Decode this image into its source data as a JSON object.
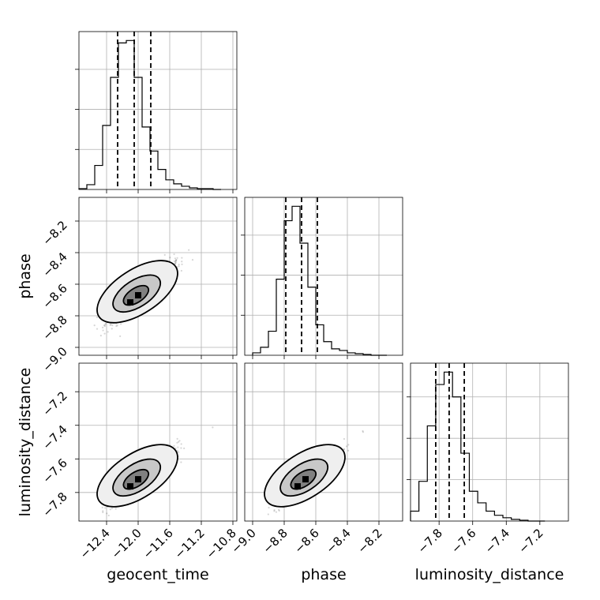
{
  "chart_data": {
    "type": "corner",
    "parameters": [
      "geocent_time",
      "phase",
      "luminosity_distance"
    ],
    "axis_ranges": {
      "geocent_time": [
        -12.75,
        -10.75
      ],
      "phase": [
        -9.05,
        -8.05
      ],
      "luminosity_distance": [
        -7.97,
        -7.03
      ]
    },
    "ticks": {
      "geocent_time": [
        -12.4,
        -12.0,
        -11.6,
        -11.2,
        -10.8
      ],
      "phase": [
        -9.0,
        -8.8,
        -8.6,
        -8.4,
        -8.2
      ],
      "luminosity_distance": [
        -7.8,
        -7.6,
        -7.4,
        -7.2
      ]
    },
    "tick_labels": {
      "geocent_time": [
        "−12.4",
        "−12.0",
        "−11.6",
        "−11.2",
        "−10.8"
      ],
      "phase": [
        "−9.0",
        "−8.8",
        "−8.6",
        "−8.4",
        "−8.2"
      ],
      "luminosity_distance": [
        "−7.8",
        "−7.6",
        "−7.4",
        "−7.2"
      ]
    },
    "quantiles": {
      "geocent_time": [
        -12.26,
        -12.05,
        -11.84
      ],
      "phase": [
        -8.79,
        -8.69,
        -8.59
      ],
      "luminosity_distance": [
        -7.82,
        -7.74,
        -7.65
      ]
    },
    "histograms": {
      "geocent_time": {
        "bin_edges": [
          -12.75,
          -12.65,
          -12.55,
          -12.45,
          -12.35,
          -12.25,
          -12.15,
          -12.05,
          -11.95,
          -11.85,
          -11.75,
          -11.65,
          -11.55,
          -11.45,
          -11.35,
          -11.25,
          -11.15,
          -11.05,
          -10.95
        ],
        "counts": [
          1,
          6,
          30,
          80,
          140,
          183,
          186,
          140,
          78,
          48,
          25,
          12,
          7,
          4,
          2,
          1,
          1,
          0
        ]
      },
      "phase": {
        "bin_edges": [
          -9.0,
          -8.95,
          -8.9,
          -8.85,
          -8.8,
          -8.75,
          -8.7,
          -8.65,
          -8.6,
          -8.55,
          -8.5,
          -8.45,
          -8.4,
          -8.35,
          -8.3,
          -8.25,
          -8.2,
          -8.15
        ],
        "counts": [
          3,
          10,
          30,
          95,
          168,
          186,
          140,
          85,
          38,
          17,
          8,
          6,
          3,
          2,
          1,
          0,
          0
        ]
      },
      "luminosity_distance": {
        "bin_edges": [
          -7.97,
          -7.92,
          -7.87,
          -7.82,
          -7.77,
          -7.72,
          -7.67,
          -7.62,
          -7.57,
          -7.52,
          -7.47,
          -7.42,
          -7.37,
          -7.32,
          -7.27,
          -7.22,
          -7.17
        ],
        "counts": [
          12,
          48,
          115,
          165,
          180,
          150,
          82,
          36,
          22,
          12,
          7,
          4,
          2,
          1,
          0,
          0
        ]
      }
    },
    "posterior_center": {
      "geocent_time": -12.05,
      "phase": -8.69,
      "luminosity_distance": -7.74
    },
    "grid": true,
    "style": {
      "ink": "#000000",
      "grid": "#b0b0b0",
      "fill_levels": [
        "#efefef",
        "#c8c8c8",
        "#808080",
        "#000000"
      ]
    }
  }
}
